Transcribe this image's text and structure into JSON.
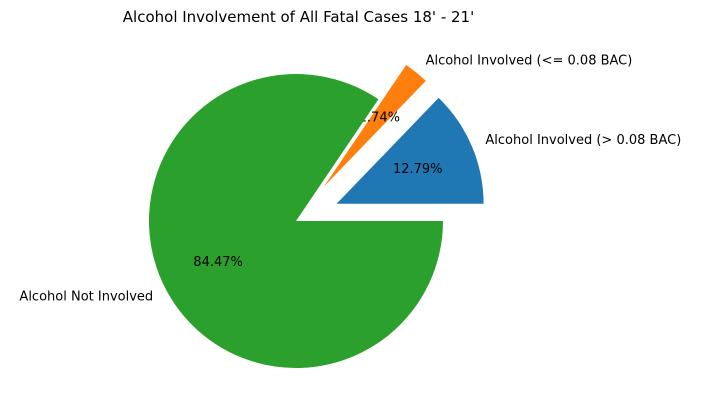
{
  "chart_data": {
    "type": "pie",
    "title": "Alcohol Involvement of All Fatal Cases 18' - 21'",
    "slices": [
      {
        "label": "Alcohol Involved (> 0.08 BAC)",
        "value": 12.79,
        "pct_label": "12.79%",
        "color": "#1f77b4",
        "exploded": true
      },
      {
        "label": "Alcohol Involved (<= 0.08 BAC)",
        "value": 2.74,
        "pct_label": "2.74%",
        "color": "#ff7f0e",
        "exploded": true
      },
      {
        "label": "Alcohol Not Involved",
        "value": 84.47,
        "pct_label": "84.47%",
        "color": "#2ca02c",
        "exploded": false
      }
    ],
    "start_angle_deg": 0,
    "direction": "counterclockwise",
    "legend": "none"
  }
}
